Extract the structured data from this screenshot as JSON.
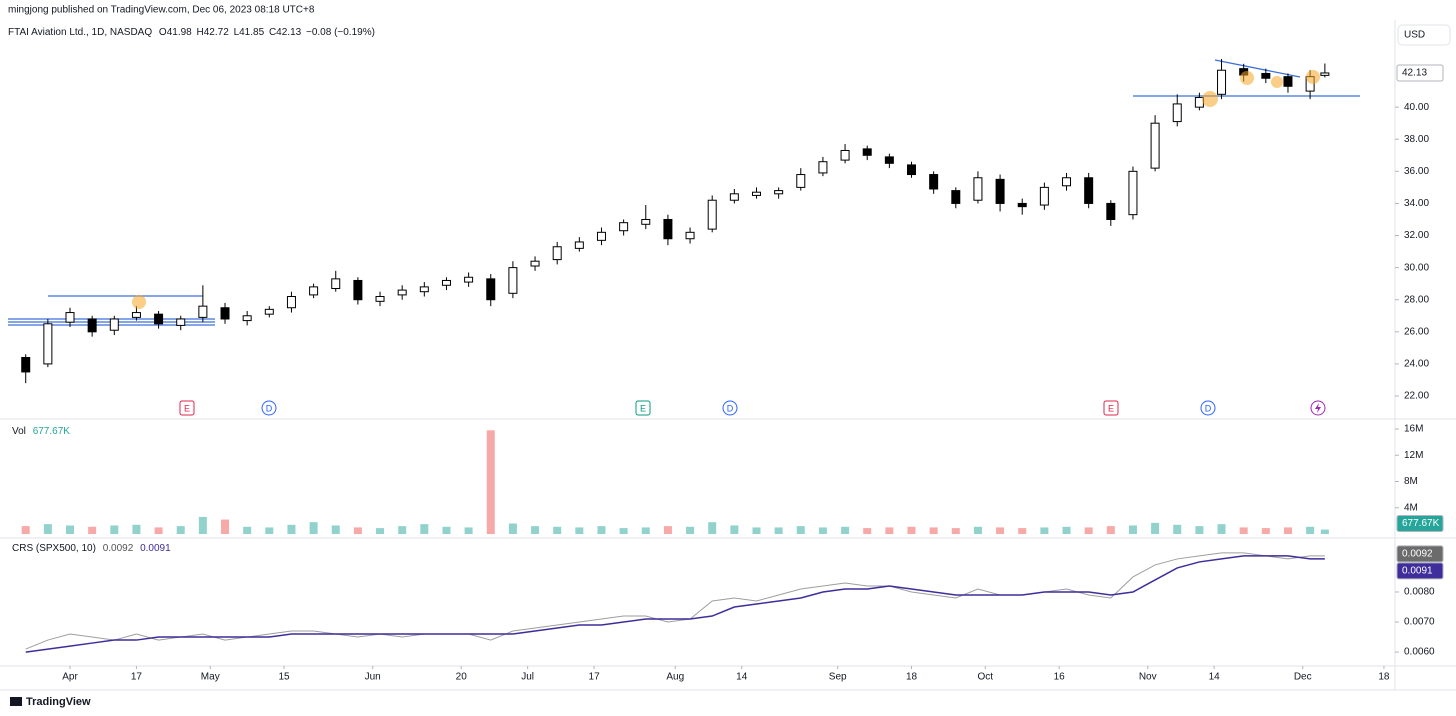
{
  "header": {
    "publisher": "mingjong published on TradingView.com, Dec 06, 2023 08:18 UTC+8",
    "currency": "USD",
    "brand": "TradingView"
  },
  "chart_data": {
    "type": "candlestick",
    "title": "FTAI Aviation Ltd., 1D, NASDAQ",
    "ohlc_labels": [
      "O",
      "H",
      "L",
      "C"
    ],
    "change": "−0.08 (−0.19%)",
    "x": [
      -6,
      -3,
      0,
      3,
      6,
      9,
      12,
      15,
      18,
      21,
      24,
      27,
      30,
      33,
      36,
      39,
      42,
      45,
      48,
      51,
      54,
      57,
      60,
      63,
      66,
      69,
      72,
      75,
      78,
      81,
      84,
      87,
      90,
      93,
      96,
      99,
      102,
      105,
      108,
      111,
      114,
      117,
      120,
      123,
      126,
      129,
      132,
      135,
      138,
      141,
      144,
      147,
      150,
      153,
      156,
      159,
      162,
      165,
      168,
      170
    ],
    "xlim": [
      -8.4,
      179.5
    ],
    "xticks": [
      {
        "value": 0,
        "label": "Apr"
      },
      {
        "value": 9,
        "label": "17"
      },
      {
        "value": 19,
        "label": "May"
      },
      {
        "value": 29,
        "label": "15"
      },
      {
        "value": 41,
        "label": "Jun"
      },
      {
        "value": 53,
        "label": "20"
      },
      {
        "value": 62,
        "label": "Jul"
      },
      {
        "value": 71,
        "label": "17"
      },
      {
        "value": 82,
        "label": "Aug"
      },
      {
        "value": 91,
        "label": "14"
      },
      {
        "value": 104,
        "label": "Sep"
      },
      {
        "value": 114,
        "label": "18"
      },
      {
        "value": 124,
        "label": "Oct"
      },
      {
        "value": 134,
        "label": "16"
      },
      {
        "value": 146,
        "label": "Nov"
      },
      {
        "value": 155,
        "label": "14"
      },
      {
        "value": 167,
        "label": "Dec"
      },
      {
        "value": 178,
        "label": "18"
      }
    ],
    "open": [
      24.4,
      24.0,
      26.6,
      26.8,
      26.1,
      26.9,
      27.1,
      26.4,
      26.9,
      27.5,
      26.7,
      27.1,
      27.5,
      28.3,
      28.7,
      29.2,
      27.9,
      28.3,
      28.5,
      28.9,
      29.1,
      29.3,
      28.4,
      30.1,
      30.5,
      31.2,
      31.7,
      32.3,
      32.7,
      33.0,
      31.8,
      32.4,
      34.2,
      34.5,
      34.6,
      35.0,
      35.9,
      36.7,
      37.4,
      36.9,
      36.4,
      35.8,
      34.8,
      34.2,
      35.5,
      34.0,
      33.9,
      35.1,
      35.6,
      34.0,
      33.3,
      36.2,
      39.1,
      40.0,
      40.8,
      42.4,
      42.1,
      41.9,
      41.0,
      41.98
    ],
    "high": [
      24.6,
      26.8,
      27.5,
      27.0,
      27.0,
      27.6,
      27.3,
      27.0,
      28.9,
      27.8,
      27.3,
      27.6,
      28.5,
      29.0,
      29.8,
      29.4,
      28.5,
      28.9,
      29.1,
      29.4,
      29.7,
      29.6,
      30.4,
      30.7,
      31.6,
      31.9,
      32.5,
      33.0,
      33.9,
      33.3,
      32.5,
      34.5,
      34.9,
      35.0,
      35.0,
      36.2,
      36.9,
      37.7,
      37.6,
      37.1,
      36.6,
      36.0,
      35.0,
      36.0,
      35.8,
      34.3,
      35.3,
      35.9,
      35.9,
      34.2,
      36.3,
      39.5,
      40.8,
      40.9,
      43.0,
      42.7,
      42.4,
      42.1,
      42.3,
      42.72
    ],
    "low": [
      22.8,
      23.8,
      26.3,
      25.7,
      25.8,
      26.7,
      26.2,
      26.1,
      26.6,
      26.5,
      26.4,
      26.9,
      27.2,
      28.1,
      28.5,
      27.7,
      27.6,
      28.0,
      28.2,
      28.6,
      28.8,
      27.6,
      28.1,
      29.8,
      30.2,
      31.0,
      31.4,
      32.0,
      32.4,
      31.4,
      31.5,
      32.2,
      34.0,
      34.3,
      34.3,
      34.8,
      35.7,
      36.5,
      36.7,
      36.2,
      35.6,
      34.6,
      33.7,
      34.0,
      33.5,
      33.3,
      33.6,
      34.8,
      33.7,
      32.6,
      33.0,
      36.0,
      38.8,
      39.8,
      40.5,
      41.6,
      41.5,
      40.9,
      40.5,
      41.85
    ],
    "close": [
      23.5,
      26.5,
      27.2,
      26.0,
      26.8,
      27.2,
      26.5,
      26.8,
      27.6,
      26.8,
      27.0,
      27.4,
      28.2,
      28.8,
      29.3,
      28.0,
      28.2,
      28.6,
      28.8,
      29.2,
      29.4,
      28.0,
      30.0,
      30.4,
      31.3,
      31.6,
      32.2,
      32.8,
      33.0,
      31.8,
      32.2,
      34.2,
      34.6,
      34.7,
      34.8,
      35.8,
      36.6,
      37.3,
      37.0,
      36.5,
      35.8,
      34.9,
      34.0,
      35.6,
      34.0,
      33.8,
      35.0,
      35.6,
      34.0,
      33.0,
      36.0,
      39.0,
      40.2,
      40.6,
      42.3,
      42.0,
      41.8,
      41.3,
      41.9,
      42.13
    ],
    "up_color": "#ffffff",
    "down_color": "#000000",
    "ylim": [
      20.63,
      45.43
    ],
    "yticks": [
      {
        "value": 22,
        "label": "22.00"
      },
      {
        "value": 24,
        "label": "24.00"
      },
      {
        "value": 26,
        "label": "26.00"
      },
      {
        "value": 28,
        "label": "28.00"
      },
      {
        "value": 30,
        "label": "30.00"
      },
      {
        "value": 32,
        "label": "32.00"
      },
      {
        "value": 34,
        "label": "34.00"
      },
      {
        "value": 36,
        "label": "36.00"
      },
      {
        "value": 38,
        "label": "38.00"
      },
      {
        "value": 40,
        "label": "40.00"
      }
    ],
    "events": [
      "E",
      "D",
      "E",
      "D",
      "E",
      "D"
    ],
    "volume": {
      "name": "Vol",
      "values": [
        1200000,
        1500000,
        1300000,
        1100000,
        1300000,
        1400000,
        1000000,
        1200000,
        2600000,
        2200000,
        1100000,
        1000000,
        1400000,
        1800000,
        1300000,
        1000000,
        900000,
        1200000,
        1500000,
        1100000,
        1000000,
        15800000,
        1600000,
        1200000,
        1100000,
        1000000,
        1200000,
        900000,
        1000000,
        1200000,
        1100000,
        1800000,
        1300000,
        1000000,
        1000000,
        1200000,
        1000000,
        1100000,
        900000,
        1000000,
        1100000,
        1000000,
        900000,
        1100000,
        1000000,
        900000,
        1000000,
        1100000,
        1000000,
        1200000,
        1300000,
        1700000,
        1400000,
        1200000,
        1500000,
        1000000,
        900000,
        1000000,
        1100000,
        677670
      ],
      "value_labels": [
        null,
        null,
        null,
        null,
        null,
        null,
        null,
        null,
        null,
        null,
        null,
        null,
        null,
        null,
        null,
        null,
        null,
        null,
        null,
        null,
        null,
        null,
        null,
        null,
        null,
        null,
        null,
        null,
        null,
        null,
        null,
        null,
        null,
        null,
        null,
        null,
        null,
        null,
        null,
        null,
        null,
        null,
        null,
        null,
        null,
        null,
        null,
        null,
        null,
        null,
        null,
        null,
        null,
        null,
        null,
        null,
        null,
        null,
        null,
        "677.67K"
      ],
      "ylim": [
        0,
        17370000
      ],
      "yticks": [
        {
          "value": 4000000,
          "label": "4M"
        },
        {
          "value": 8000000,
          "label": "8M"
        },
        {
          "value": 12000000,
          "label": "12M"
        },
        {
          "value": 16000000,
          "label": "16M"
        }
      ],
      "up_color": "#26a69a",
      "down_color": "#ef5350"
    },
    "indicator": {
      "name": "CRS (SPX500, 10)",
      "ylim": [
        0.00557,
        0.00973
      ],
      "yticks": [
        {
          "value": 0.006,
          "label": "0.0060"
        },
        {
          "value": 0.007,
          "label": "0.0070"
        },
        {
          "value": 0.008,
          "label": "0.0080"
        }
      ],
      "series": [
        {
          "color": "#9e9e9e",
          "values": [
            0.0061,
            0.0064,
            0.0066,
            0.0065,
            0.0064,
            0.0066,
            0.0064,
            0.0065,
            0.0066,
            0.0064,
            0.0065,
            0.0066,
            0.0067,
            0.0067,
            0.0066,
            0.0065,
            0.0066,
            0.0065,
            0.0066,
            0.0066,
            0.0066,
            0.0064,
            0.0067,
            0.0068,
            0.0069,
            0.007,
            0.0071,
            0.0072,
            0.0072,
            0.007,
            0.0071,
            0.0077,
            0.0078,
            0.0077,
            0.0079,
            0.0081,
            0.0082,
            0.0083,
            0.0082,
            0.0082,
            0.008,
            0.0079,
            0.0078,
            0.0081,
            0.0079,
            0.0079,
            0.008,
            0.0081,
            0.0079,
            0.0078,
            0.0085,
            0.0089,
            0.0091,
            0.0092,
            0.0093,
            0.0093,
            0.0092,
            0.0091,
            0.0092,
            0.0092
          ]
        },
        {
          "color": "#3f2d9c",
          "values": [
            0.006,
            0.0061,
            0.0062,
            0.0063,
            0.0064,
            0.0064,
            0.0065,
            0.0065,
            0.0065,
            0.0065,
            0.0065,
            0.0065,
            0.0066,
            0.0066,
            0.0066,
            0.0066,
            0.0066,
            0.0066,
            0.0066,
            0.0066,
            0.0066,
            0.0066,
            0.0066,
            0.0067,
            0.0068,
            0.0069,
            0.0069,
            0.007,
            0.0071,
            0.0071,
            0.0071,
            0.0072,
            0.0075,
            0.0076,
            0.0077,
            0.0078,
            0.008,
            0.0081,
            0.0081,
            0.0082,
            0.0081,
            0.008,
            0.0079,
            0.0079,
            0.0079,
            0.0079,
            0.008,
            0.008,
            0.008,
            0.0079,
            0.008,
            0.0084,
            0.0088,
            0.009,
            0.0091,
            0.0092,
            0.0092,
            0.0092,
            0.0091,
            0.0091
          ]
        }
      ]
    }
  }
}
